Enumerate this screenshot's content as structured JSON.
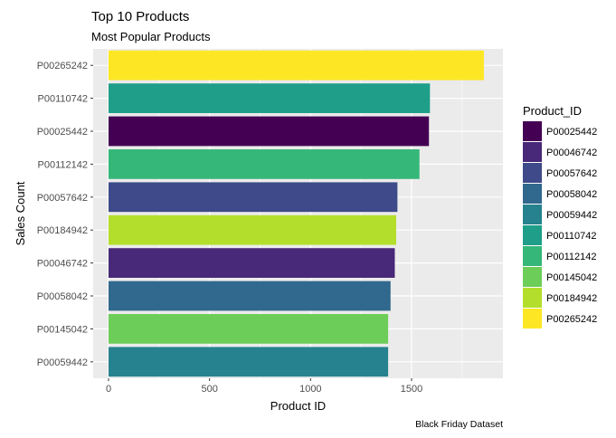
{
  "chart_data": {
    "type": "bar",
    "orientation": "horizontal",
    "title": "Top 10 Products",
    "subtitle": "Most Popular Products",
    "xlabel": "Product ID",
    "ylabel": "Sales Count",
    "caption": "Black Friday Dataset",
    "xlim": [
      0,
      1930
    ],
    "xticks": [
      0,
      500,
      1000,
      1500
    ],
    "grid": true,
    "legend": {
      "title": "Product_ID",
      "position": "right",
      "items": [
        {
          "label": "P00025442",
          "color": "#440154"
        },
        {
          "label": "P00046742",
          "color": "#482878"
        },
        {
          "label": "P00057642",
          "color": "#3E4A89"
        },
        {
          "label": "P00058042",
          "color": "#31688E"
        },
        {
          "label": "P00059442",
          "color": "#26828E"
        },
        {
          "label": "P00110742",
          "color": "#1F9E89"
        },
        {
          "label": "P00112142",
          "color": "#35B779"
        },
        {
          "label": "P00145042",
          "color": "#6DCD59"
        },
        {
          "label": "P00184942",
          "color": "#B4DE2C"
        },
        {
          "label": "P00265242",
          "color": "#FDE725"
        }
      ]
    },
    "bars": [
      {
        "category": "P00265242",
        "value": 1858,
        "color": "#FDE725"
      },
      {
        "category": "P00110742",
        "value": 1591,
        "color": "#1F9E89"
      },
      {
        "category": "P00025442",
        "value": 1586,
        "color": "#440154"
      },
      {
        "category": "P00112142",
        "value": 1539,
        "color": "#35B779"
      },
      {
        "category": "P00057642",
        "value": 1430,
        "color": "#3E4A89"
      },
      {
        "category": "P00184942",
        "value": 1424,
        "color": "#B4DE2C"
      },
      {
        "category": "P00046742",
        "value": 1417,
        "color": "#482878"
      },
      {
        "category": "P00058042",
        "value": 1396,
        "color": "#31688E"
      },
      {
        "category": "P00145042",
        "value": 1384,
        "color": "#6DCD59"
      },
      {
        "category": "P00059442",
        "value": 1384,
        "color": "#26828E"
      }
    ],
    "panel_color": "#EBEBEB",
    "grid_color": "#FFFFFF"
  }
}
